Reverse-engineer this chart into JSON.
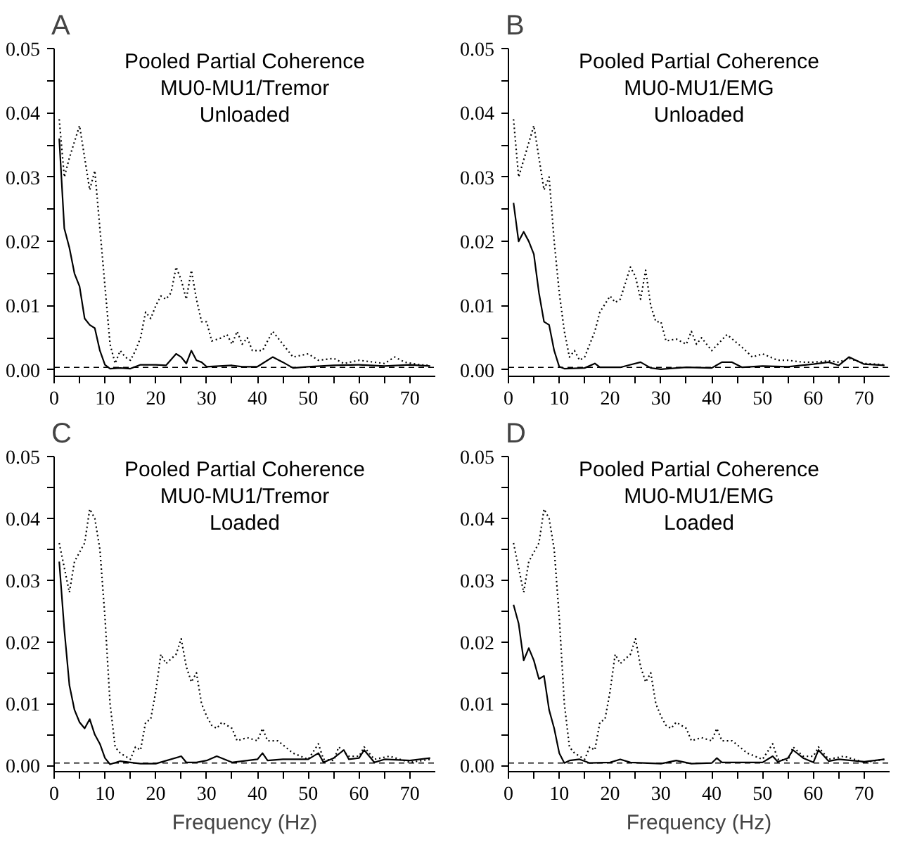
{
  "chart_data": [
    {
      "type": "line",
      "annotations": [
        "A"
      ],
      "title": "Pooled Partial Coherence",
      "subtitle": "MU0-MU1/Tremor\nUnloaded",
      "xlim": [
        0,
        75
      ],
      "ylim": [
        -0.001,
        0.05
      ],
      "xticks": [
        0,
        {
          "value": 5,
          "label": null
        },
        10,
        {
          "value": 15,
          "label": null
        },
        20,
        {
          "value": 25,
          "label": null
        },
        30,
        {
          "value": 35,
          "label": null
        },
        40,
        {
          "value": 45,
          "label": null
        },
        50,
        {
          "value": 55,
          "label": null
        },
        60,
        {
          "value": 65,
          "label": null
        },
        70
      ],
      "yticks": [
        {
          "value": 0,
          "label": "0.00"
        },
        {
          "value": 0.005,
          "label": null
        },
        {
          "value": 0.01,
          "label": "0.01"
        },
        {
          "value": 0.015,
          "label": null
        },
        {
          "value": 0.02,
          "label": "0.02"
        },
        {
          "value": 0.025,
          "label": null
        },
        {
          "value": 0.03,
          "label": "0.03"
        },
        {
          "value": 0.035,
          "label": null
        },
        {
          "value": 0.04,
          "label": "0.04"
        },
        {
          "value": 0.045,
          "label": null
        },
        {
          "value": 0.05,
          "label": "0.05"
        }
      ],
      "ref_lines": [
        {
          "axis": "y",
          "value": 0.0004,
          "label": null,
          "line_style": "dashed",
          "color": "#000000"
        }
      ],
      "series": [
        {
          "color": "#000000",
          "line_style": "dotted",
          "x": [
            1,
            2,
            3,
            5,
            7,
            8,
            9,
            10,
            11,
            12,
            13,
            14,
            15,
            16,
            17,
            18,
            19,
            20,
            21,
            22,
            23,
            24,
            25,
            26,
            27,
            28,
            29,
            30,
            31,
            33,
            34,
            35,
            36,
            37,
            38,
            39,
            41,
            43,
            45,
            47,
            50,
            52,
            55,
            57,
            60,
            63,
            65,
            67,
            69,
            72,
            74
          ],
          "values": [
            0.039,
            0.03,
            0.033,
            0.038,
            0.028,
            0.031,
            0.022,
            0.013,
            0.004,
            0.001,
            0.003,
            0.002,
            0.0015,
            0.003,
            0.005,
            0.009,
            0.008,
            0.01,
            0.0115,
            0.011,
            0.012,
            0.016,
            0.014,
            0.011,
            0.0155,
            0.011,
            0.0075,
            0.0075,
            0.0045,
            0.005,
            0.0055,
            0.004,
            0.006,
            0.004,
            0.005,
            0.003,
            0.003,
            0.006,
            0.004,
            0.002,
            0.0025,
            0.0015,
            0.0018,
            0.001,
            0.0015,
            0.0012,
            0.001,
            0.002,
            0.0012,
            0.0008,
            0.0007
          ]
        },
        {
          "color": "#000000",
          "line_style": "solid",
          "x": [
            1,
            2,
            3,
            4,
            5,
            6,
            7,
            8,
            9,
            10,
            11,
            13,
            15,
            17,
            20,
            22,
            24,
            25,
            26,
            27,
            28,
            29,
            30,
            35,
            37,
            40,
            43,
            45,
            47,
            50,
            55,
            60,
            65,
            70,
            74
          ],
          "values": [
            0.036,
            0.022,
            0.019,
            0.015,
            0.013,
            0.008,
            0.007,
            0.0065,
            0.003,
            0.0008,
            0.0002,
            0.0003,
            0.0002,
            0.0008,
            0.0008,
            0.0007,
            0.0025,
            0.002,
            0.001,
            0.003,
            0.0015,
            0.0012,
            0.0005,
            0.0007,
            0.0005,
            0.0005,
            0.002,
            0.0012,
            0.0003,
            0.0005,
            0.0007,
            0.0008,
            0.0006,
            0.0008,
            0.0006
          ]
        }
      ]
    },
    {
      "type": "line",
      "annotations": [
        "B"
      ],
      "title": "Pooled Partial Coherence",
      "subtitle": "MU0-MU1/EMG\nUnloaded",
      "xlim": [
        0,
        75
      ],
      "ylim": [
        -0.001,
        0.05
      ],
      "xticks": [
        0,
        {
          "value": 5,
          "label": null
        },
        10,
        {
          "value": 15,
          "label": null
        },
        20,
        {
          "value": 25,
          "label": null
        },
        30,
        {
          "value": 35,
          "label": null
        },
        40,
        {
          "value": 45,
          "label": null
        },
        50,
        {
          "value": 55,
          "label": null
        },
        60,
        {
          "value": 65,
          "label": null
        },
        70
      ],
      "yticks": [
        {
          "value": 0,
          "label": "0.00"
        },
        {
          "value": 0.005,
          "label": null
        },
        {
          "value": 0.01,
          "label": "0.01"
        },
        {
          "value": 0.015,
          "label": null
        },
        {
          "value": 0.02,
          "label": "0.02"
        },
        {
          "value": 0.025,
          "label": null
        },
        {
          "value": 0.03,
          "label": "0.03"
        },
        {
          "value": 0.035,
          "label": null
        },
        {
          "value": 0.04,
          "label": "0.04"
        },
        {
          "value": 0.045,
          "label": null
        },
        {
          "value": 0.05,
          "label": "0.05"
        }
      ],
      "ref_lines": [
        {
          "axis": "y",
          "value": 0.0004,
          "label": null,
          "line_style": "dashed",
          "color": "#000000"
        }
      ],
      "series": [
        {
          "color": "#000000",
          "line_style": "dotted",
          "x": [
            1,
            2,
            5,
            7,
            8,
            9,
            10,
            11,
            12,
            13,
            14,
            15,
            17,
            18,
            20,
            21,
            22,
            24,
            25,
            26,
            27,
            28,
            29,
            30,
            31,
            33,
            35,
            36,
            37,
            38,
            40,
            43,
            46,
            48,
            50,
            53,
            55,
            58,
            60,
            63,
            65,
            67,
            70,
            74
          ],
          "values": [
            0.039,
            0.03,
            0.038,
            0.028,
            0.03,
            0.02,
            0.012,
            0.006,
            0.002,
            0.003,
            0.0015,
            0.002,
            0.006,
            0.009,
            0.0115,
            0.0105,
            0.011,
            0.016,
            0.0145,
            0.011,
            0.0155,
            0.01,
            0.0075,
            0.0075,
            0.0045,
            0.0048,
            0.004,
            0.006,
            0.004,
            0.005,
            0.003,
            0.0055,
            0.0035,
            0.002,
            0.0025,
            0.0015,
            0.0015,
            0.0012,
            0.0012,
            0.0014,
            0.0012,
            0.0018,
            0.001,
            0.0008
          ]
        },
        {
          "color": "#000000",
          "line_style": "solid",
          "x": [
            1,
            2,
            3,
            4,
            5,
            6,
            7,
            8,
            9,
            10,
            11,
            15,
            17,
            18,
            22,
            24,
            26,
            28,
            30,
            35,
            40,
            42,
            44,
            46,
            50,
            55,
            60,
            63,
            65,
            67,
            70,
            74
          ],
          "values": [
            0.026,
            0.02,
            0.0215,
            0.02,
            0.018,
            0.012,
            0.0075,
            0.007,
            0.003,
            0.0005,
            0.0002,
            0.0003,
            0.001,
            0.0004,
            0.0004,
            0.0008,
            0.0012,
            0.0003,
            0.0001,
            0.0004,
            0.0003,
            0.0012,
            0.0012,
            0.0004,
            0.0006,
            0.0005,
            0.0009,
            0.0012,
            0.0007,
            0.002,
            0.0009,
            0.0007
          ]
        }
      ]
    },
    {
      "type": "line",
      "annotations": [
        "C"
      ],
      "title": "Pooled Partial Coherence",
      "subtitle": "MU0-MU1/Tremor\nLoaded",
      "xlabel": "Frequency (Hz)",
      "xlim": [
        0,
        75
      ],
      "ylim": [
        -0.001,
        0.05
      ],
      "xticks": [
        0,
        {
          "value": 5,
          "label": null
        },
        10,
        {
          "value": 15,
          "label": null
        },
        20,
        {
          "value": 25,
          "label": null
        },
        30,
        {
          "value": 35,
          "label": null
        },
        40,
        {
          "value": 45,
          "label": null
        },
        50,
        {
          "value": 55,
          "label": null
        },
        60,
        {
          "value": 65,
          "label": null
        },
        70
      ],
      "yticks": [
        {
          "value": 0,
          "label": "0.00"
        },
        {
          "value": 0.005,
          "label": null
        },
        {
          "value": 0.01,
          "label": "0.01"
        },
        {
          "value": 0.015,
          "label": null
        },
        {
          "value": 0.02,
          "label": "0.02"
        },
        {
          "value": 0.025,
          "label": null
        },
        {
          "value": 0.03,
          "label": "0.03"
        },
        {
          "value": 0.035,
          "label": null
        },
        {
          "value": 0.04,
          "label": "0.04"
        },
        {
          "value": 0.045,
          "label": null
        },
        {
          "value": 0.05,
          "label": "0.05"
        }
      ],
      "ref_lines": [
        {
          "axis": "y",
          "value": 0.0004,
          "label": null,
          "line_style": "dashed",
          "color": "#000000"
        }
      ],
      "series": [
        {
          "color": "#000000",
          "line_style": "dotted",
          "x": [
            1,
            3,
            4,
            6,
            7,
            8,
            9,
            10,
            11,
            12,
            13,
            15,
            16,
            17,
            18,
            19,
            20,
            21,
            22,
            24,
            25,
            26,
            27,
            28,
            29,
            30,
            31,
            32,
            33,
            35,
            36,
            38,
            40,
            41,
            42,
            44,
            47,
            50,
            52,
            53,
            55,
            56,
            58,
            60,
            61,
            63,
            66,
            70,
            74
          ],
          "values": [
            0.036,
            0.028,
            0.033,
            0.036,
            0.0415,
            0.04,
            0.035,
            0.024,
            0.01,
            0.003,
            0.002,
            0.001,
            0.003,
            0.0025,
            0.007,
            0.0075,
            0.012,
            0.018,
            0.0165,
            0.018,
            0.0205,
            0.016,
            0.0135,
            0.015,
            0.01,
            0.008,
            0.0065,
            0.006,
            0.007,
            0.006,
            0.004,
            0.0045,
            0.004,
            0.006,
            0.004,
            0.004,
            0.002,
            0.001,
            0.0035,
            0.001,
            0.0008,
            0.003,
            0.0015,
            0.0015,
            0.003,
            0.001,
            0.0015,
            0.0005,
            0.001
          ]
        },
        {
          "color": "#000000",
          "line_style": "solid",
          "x": [
            1,
            2,
            3,
            4,
            5,
            6,
            7,
            8,
            9,
            10,
            11,
            13,
            15,
            17,
            20,
            25,
            26,
            28,
            30,
            32,
            35,
            40,
            41,
            42,
            45,
            50,
            52,
            53,
            55,
            57,
            58,
            60,
            61,
            63,
            65,
            70,
            74
          ],
          "values": [
            0.033,
            0.022,
            0.013,
            0.009,
            0.007,
            0.006,
            0.0075,
            0.005,
            0.0035,
            0.0012,
            0.0002,
            0.0007,
            0.0005,
            0.0003,
            0.0003,
            0.0015,
            0.0005,
            0.0005,
            0.0008,
            0.0015,
            0.0005,
            0.001,
            0.002,
            0.0008,
            0.001,
            0.001,
            0.002,
            0.0005,
            0.0012,
            0.0025,
            0.001,
            0.0012,
            0.0025,
            0.0005,
            0.001,
            0.0008,
            0.0012
          ]
        }
      ]
    },
    {
      "type": "line",
      "annotations": [
        "D"
      ],
      "title": "Pooled Partial Coherence",
      "subtitle": "MU0-MU1/EMG\nLoaded",
      "xlabel": "Frequency (Hz)",
      "xlim": [
        0,
        75
      ],
      "ylim": [
        -0.001,
        0.05
      ],
      "xticks": [
        0,
        {
          "value": 5,
          "label": null
        },
        10,
        {
          "value": 15,
          "label": null
        },
        20,
        {
          "value": 25,
          "label": null
        },
        30,
        {
          "value": 35,
          "label": null
        },
        40,
        {
          "value": 45,
          "label": null
        },
        50,
        {
          "value": 55,
          "label": null
        },
        60,
        {
          "value": 65,
          "label": null
        },
        70
      ],
      "yticks": [
        {
          "value": 0,
          "label": "0.00"
        },
        {
          "value": 0.005,
          "label": null
        },
        {
          "value": 0.01,
          "label": "0.01"
        },
        {
          "value": 0.015,
          "label": null
        },
        {
          "value": 0.02,
          "label": "0.02"
        },
        {
          "value": 0.025,
          "label": null
        },
        {
          "value": 0.03,
          "label": "0.03"
        },
        {
          "value": 0.035,
          "label": null
        },
        {
          "value": 0.04,
          "label": "0.04"
        },
        {
          "value": 0.045,
          "label": null
        },
        {
          "value": 0.05,
          "label": "0.05"
        }
      ],
      "ref_lines": [
        {
          "axis": "y",
          "value": 0.0004,
          "label": null,
          "line_style": "dashed",
          "color": "#000000"
        }
      ],
      "series": [
        {
          "color": "#000000",
          "line_style": "dotted",
          "x": [
            1,
            3,
            4,
            6,
            7,
            8,
            9,
            10,
            11,
            12,
            13,
            15,
            16,
            17,
            18,
            19,
            20,
            21,
            22,
            24,
            25,
            26,
            27,
            28,
            29,
            30,
            31,
            32,
            33,
            35,
            36,
            38,
            40,
            41,
            42,
            44,
            47,
            50,
            52,
            53,
            55,
            56,
            58,
            60,
            61,
            63,
            66,
            70,
            74
          ],
          "values": [
            0.036,
            0.028,
            0.033,
            0.036,
            0.0415,
            0.04,
            0.035,
            0.024,
            0.01,
            0.003,
            0.002,
            0.001,
            0.003,
            0.0025,
            0.007,
            0.0075,
            0.012,
            0.018,
            0.0165,
            0.018,
            0.0205,
            0.016,
            0.0135,
            0.015,
            0.01,
            0.008,
            0.0065,
            0.006,
            0.007,
            0.006,
            0.004,
            0.0045,
            0.004,
            0.006,
            0.004,
            0.004,
            0.002,
            0.001,
            0.0035,
            0.001,
            0.0008,
            0.003,
            0.0015,
            0.0015,
            0.003,
            0.001,
            0.0015,
            0.0005,
            0.001
          ]
        },
        {
          "color": "#000000",
          "line_style": "solid",
          "x": [
            1,
            2,
            3,
            4,
            5,
            6,
            7,
            8,
            9,
            10,
            11,
            12,
            14,
            16,
            20,
            22,
            24,
            30,
            33,
            36,
            40,
            41,
            42,
            50,
            52,
            53,
            55,
            56,
            58,
            60,
            61,
            63,
            65,
            70,
            74
          ],
          "values": [
            0.026,
            0.023,
            0.017,
            0.019,
            0.017,
            0.014,
            0.0145,
            0.009,
            0.006,
            0.002,
            0.0004,
            0.0008,
            0.001,
            0.0004,
            0.0005,
            0.001,
            0.0005,
            0.0003,
            0.0008,
            0.0003,
            0.0004,
            0.0012,
            0.0005,
            0.0005,
            0.0015,
            0.0006,
            0.0012,
            0.0025,
            0.0012,
            0.0005,
            0.0025,
            0.0007,
            0.001,
            0.0006,
            0.001
          ]
        }
      ]
    }
  ]
}
